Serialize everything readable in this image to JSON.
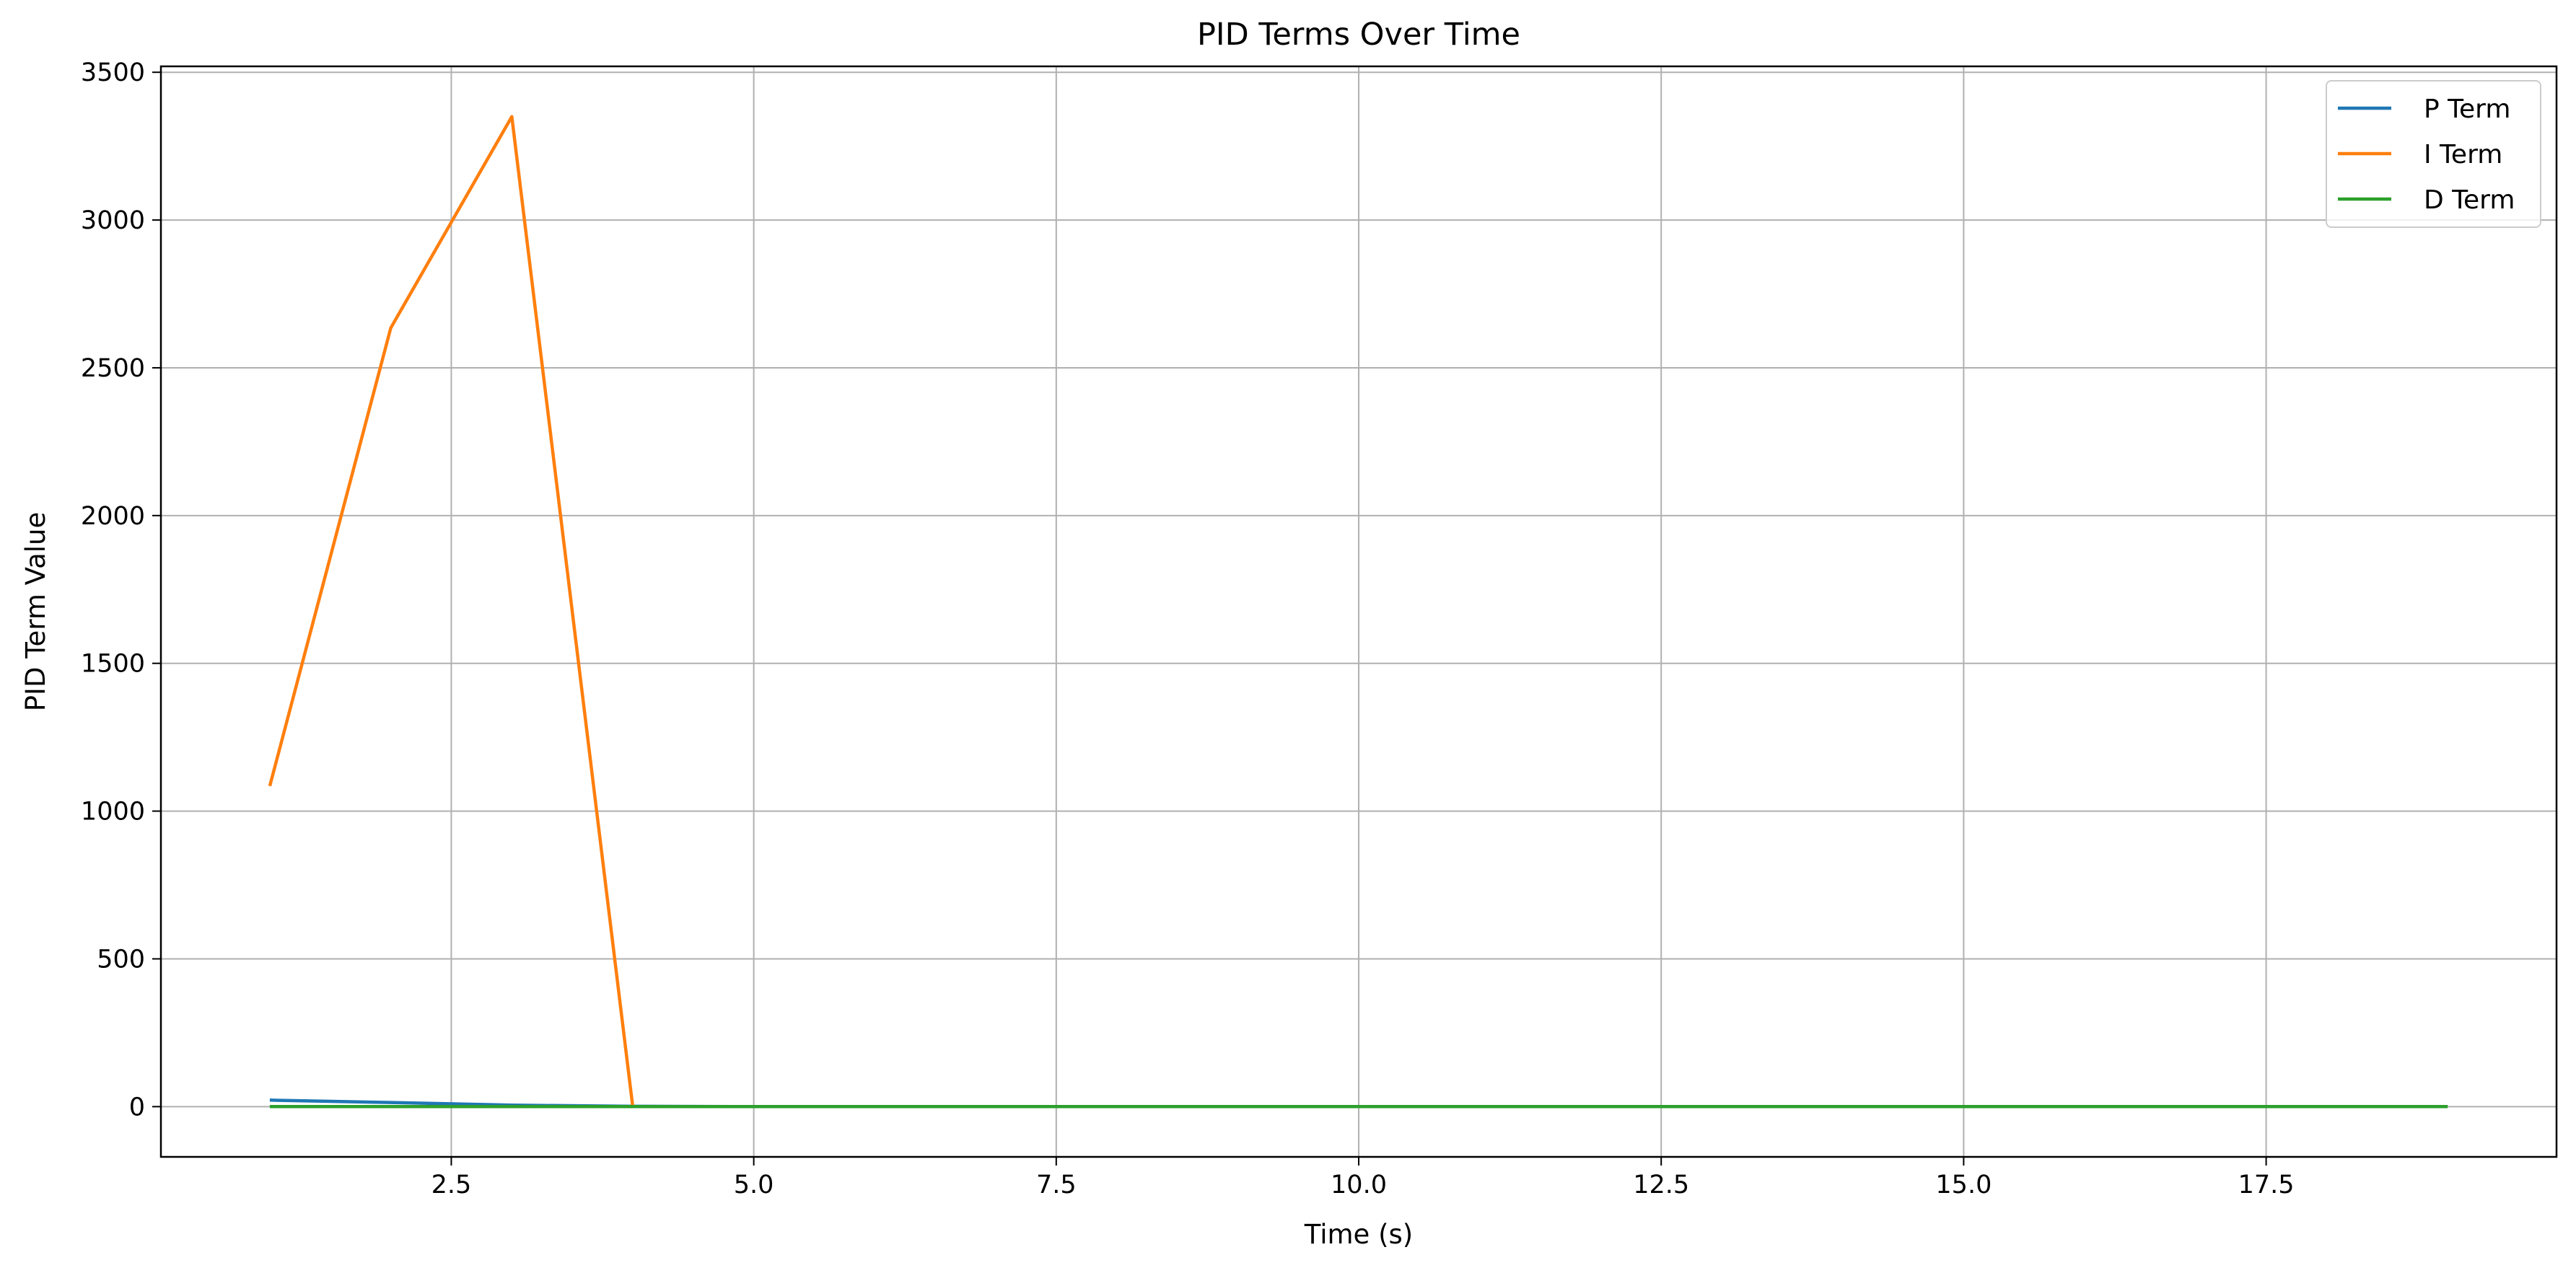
{
  "chart_data": {
    "type": "line",
    "title": "PID Terms Over Time",
    "xlabel": "Time (s)",
    "ylabel": "PID Term Value",
    "xlim": [
      0.1,
      19.9
    ],
    "ylim": [
      -170,
      3520
    ],
    "xticks": [
      2.5,
      5.0,
      7.5,
      10.0,
      12.5,
      15.0,
      17.5
    ],
    "xtick_labels": [
      "2.5",
      "5.0",
      "7.5",
      "10.0",
      "12.5",
      "15.0",
      "17.5"
    ],
    "yticks": [
      0,
      500,
      1000,
      1500,
      2000,
      2500,
      3000,
      3500
    ],
    "ytick_labels": [
      "0",
      "500",
      "1000",
      "1500",
      "2000",
      "2500",
      "3000",
      "3500"
    ],
    "grid": true,
    "legend_position": "top-right",
    "x": [
      1,
      2,
      3,
      4,
      5,
      6,
      7,
      8,
      9,
      10,
      11,
      12,
      13,
      14,
      15,
      16,
      17,
      18,
      19
    ],
    "series": [
      {
        "name": "P Term",
        "color": "#1f77b4",
        "values": [
          22,
          14,
          5,
          1,
          0,
          0,
          0,
          0,
          0,
          0,
          0,
          0,
          0,
          0,
          0,
          0,
          0,
          0,
          0
        ]
      },
      {
        "name": "I Term",
        "color": "#ff7f0e",
        "values": [
          1085,
          2635,
          3350,
          0,
          0,
          0,
          0,
          0,
          0,
          0,
          0,
          0,
          0,
          0,
          0,
          0,
          0,
          0,
          0
        ]
      },
      {
        "name": "D Term",
        "color": "#2ca02c",
        "values": [
          0,
          0,
          0,
          0,
          0,
          0,
          0,
          0,
          0,
          0,
          0,
          0,
          0,
          0,
          0,
          0,
          0,
          0,
          0
        ]
      }
    ]
  }
}
